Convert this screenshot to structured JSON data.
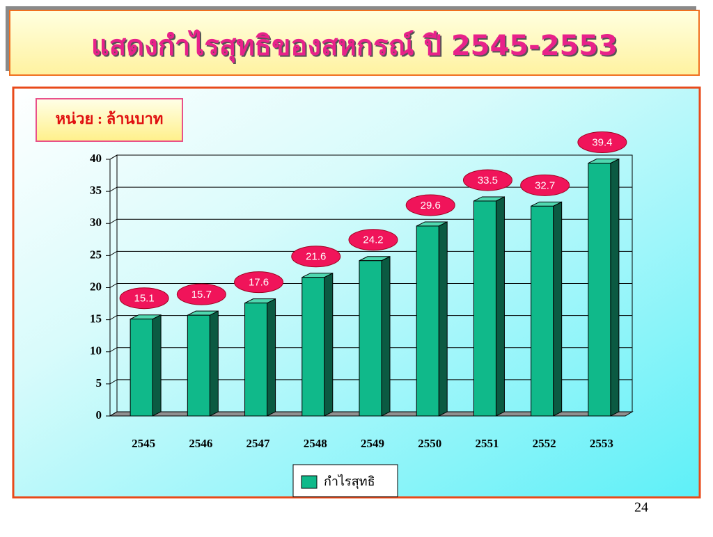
{
  "title": "แสดงกำไรสุทธิของสหกรณ์ ปี 2545-2553",
  "unit_label": "หน่วย : ล้านบาท",
  "page_number": "24",
  "chart_data": {
    "type": "bar",
    "categories": [
      "2545",
      "2546",
      "2547",
      "2548",
      "2549",
      "2550",
      "2551",
      "2552",
      "2553"
    ],
    "series": [
      {
        "name": "กำไรสุทธิ",
        "color": "#10b98a",
        "values": [
          15.1,
          15.7,
          17.6,
          21.6,
          24.2,
          29.6,
          33.5,
          32.7,
          39.4
        ]
      }
    ],
    "ylim": [
      0,
      40
    ],
    "yticks": [
      0,
      5,
      10,
      15,
      20,
      25,
      30,
      35,
      40
    ],
    "grid": true,
    "legend": "bottom"
  }
}
